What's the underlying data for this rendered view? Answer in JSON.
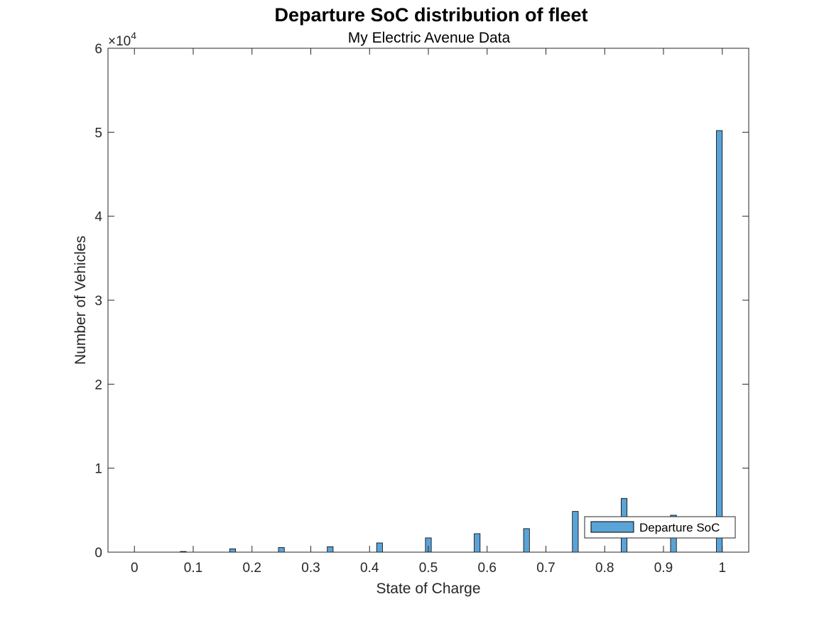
{
  "chart_data": {
    "type": "bar",
    "title": "Departure SoC distribution of fleet",
    "subtitle": "My Electric Avenue Data",
    "xlabel": "State of Charge",
    "ylabel": "Number of Vehicles",
    "xlim": [
      -0.045,
      1.045
    ],
    "ylim": [
      0,
      60000
    ],
    "x_ticks": [
      0,
      0.1,
      0.2,
      0.3,
      0.4,
      0.5,
      0.6,
      0.7,
      0.8,
      0.9,
      1
    ],
    "x_tick_labels": [
      "0",
      "0.1",
      "0.2",
      "0.3",
      "0.4",
      "0.5",
      "0.6",
      "0.7",
      "0.8",
      "0.9",
      "1"
    ],
    "y_ticks": [
      0,
      10000,
      20000,
      30000,
      40000,
      50000,
      60000
    ],
    "y_tick_labels": [
      "0",
      "1",
      "2",
      "3",
      "4",
      "5",
      "6"
    ],
    "y_exponent_base": "×10",
    "y_exponent_power": "4",
    "grid": false,
    "legend_position": "bottom-right",
    "series": [
      {
        "name": "Departure SoC",
        "color": "#5AA3D6",
        "bin_width": 0.01,
        "x": [
          0.083,
          0.167,
          0.25,
          0.333,
          0.417,
          0.5,
          0.583,
          0.667,
          0.75,
          0.833,
          0.917,
          0.995
        ],
        "values": [
          80,
          400,
          550,
          650,
          1100,
          1700,
          2200,
          2800,
          4850,
          6400,
          4400,
          50200
        ]
      }
    ]
  }
}
